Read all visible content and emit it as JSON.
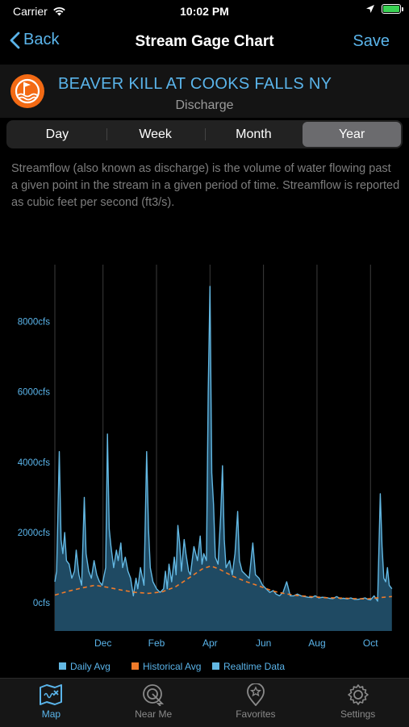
{
  "status_bar": {
    "carrier": "Carrier",
    "time": "10:02 PM"
  },
  "nav": {
    "back_label": "Back",
    "title": "Stream Gage Chart",
    "save_label": "Save"
  },
  "station": {
    "name": "BEAVER KILL AT COOKS FALLS NY",
    "subtitle": "Discharge"
  },
  "segments": [
    {
      "label": "Day",
      "active": false
    },
    {
      "label": "Week",
      "active": false
    },
    {
      "label": "Month",
      "active": false
    },
    {
      "label": "Year",
      "active": true
    }
  ],
  "description": "Streamflow (also known as discharge) is the volume of water flowing past a given point in the stream in a given period of time. Streamflow is reported as cubic feet per second (ft3/s).",
  "colors": {
    "accent": "#5ab4ea",
    "daily_fill": "#1f4a63",
    "daily_line": "#63b8e3",
    "historical": "#f07b2a",
    "logo": "#f36a14"
  },
  "chart_data": {
    "type": "area",
    "x_tick_labels": [
      "Dec",
      "Feb",
      "Apr",
      "Jun",
      "Aug",
      "Oct"
    ],
    "y_tick_labels": [
      "0cfs",
      "2000cfs",
      "4000cfs",
      "6000cfs",
      "8000cfs"
    ],
    "y_ticks": [
      0,
      2000,
      4000,
      6000,
      8000
    ],
    "ylim": [
      -800,
      9800
    ],
    "x_unit": "day of period",
    "xlim": [
      0,
      380
    ],
    "month_gridlines": [
      0,
      54,
      114,
      174,
      234,
      294,
      354
    ],
    "grid": true,
    "legend_position": "bottom",
    "series": [
      {
        "name": "Daily Avg",
        "color": "#63b8e3",
        "points": [
          [
            0,
            600
          ],
          [
            2,
            900
          ],
          [
            5,
            4300
          ],
          [
            7,
            1800
          ],
          [
            9,
            1400
          ],
          [
            11,
            2000
          ],
          [
            13,
            1200
          ],
          [
            16,
            1100
          ],
          [
            19,
            700
          ],
          [
            22,
            900
          ],
          [
            24,
            1500
          ],
          [
            27,
            800
          ],
          [
            30,
            500
          ],
          [
            33,
            3000
          ],
          [
            35,
            1400
          ],
          [
            38,
            900
          ],
          [
            41,
            700
          ],
          [
            44,
            1200
          ],
          [
            47,
            800
          ],
          [
            50,
            600
          ],
          [
            53,
            500
          ],
          [
            57,
            1000
          ],
          [
            59,
            4800
          ],
          [
            61,
            2100
          ],
          [
            63,
            1600
          ],
          [
            66,
            1000
          ],
          [
            69,
            1500
          ],
          [
            71,
            1200
          ],
          [
            74,
            1700
          ],
          [
            76,
            1000
          ],
          [
            79,
            1300
          ],
          [
            82,
            900
          ],
          [
            85,
            700
          ],
          [
            88,
            200
          ],
          [
            91,
            700
          ],
          [
            93,
            400
          ],
          [
            96,
            1000
          ],
          [
            100,
            500
          ],
          [
            103,
            4300
          ],
          [
            105,
            2100
          ],
          [
            107,
            1000
          ],
          [
            110,
            600
          ],
          [
            114,
            400
          ],
          [
            118,
            300
          ],
          [
            122,
            400
          ],
          [
            124,
            900
          ],
          [
            126,
            400
          ],
          [
            128,
            1100
          ],
          [
            131,
            600
          ],
          [
            134,
            1300
          ],
          [
            136,
            800
          ],
          [
            138,
            2200
          ],
          [
            140,
            1700
          ],
          [
            142,
            900
          ],
          [
            145,
            1800
          ],
          [
            147,
            1400
          ],
          [
            150,
            900
          ],
          [
            152,
            800
          ],
          [
            156,
            1600
          ],
          [
            160,
            1200
          ],
          [
            163,
            1900
          ],
          [
            165,
            1100
          ],
          [
            167,
            1400
          ],
          [
            170,
            1200
          ],
          [
            172,
            6000
          ],
          [
            174,
            9000
          ],
          [
            176,
            3700
          ],
          [
            178,
            2800
          ],
          [
            180,
            1300
          ],
          [
            183,
            1100
          ],
          [
            186,
            2500
          ],
          [
            188,
            3900
          ],
          [
            190,
            1800
          ],
          [
            192,
            1000
          ],
          [
            196,
            1200
          ],
          [
            199,
            800
          ],
          [
            202,
            1400
          ],
          [
            205,
            2600
          ],
          [
            207,
            1200
          ],
          [
            210,
            900
          ],
          [
            214,
            800
          ],
          [
            218,
            700
          ],
          [
            222,
            1700
          ],
          [
            225,
            800
          ],
          [
            229,
            700
          ],
          [
            233,
            500
          ],
          [
            237,
            400
          ],
          [
            241,
            300
          ],
          [
            245,
            350
          ],
          [
            248,
            250
          ],
          [
            252,
            200
          ],
          [
            256,
            300
          ],
          [
            260,
            600
          ],
          [
            264,
            200
          ],
          [
            268,
            200
          ],
          [
            272,
            250
          ],
          [
            276,
            200
          ],
          [
            280,
            180
          ],
          [
            284,
            160
          ],
          [
            288,
            150
          ],
          [
            292,
            200
          ],
          [
            296,
            140
          ],
          [
            300,
            160
          ],
          [
            304,
            150
          ],
          [
            308,
            130
          ],
          [
            312,
            120
          ],
          [
            316,
            180
          ],
          [
            320,
            120
          ],
          [
            324,
            130
          ],
          [
            328,
            110
          ],
          [
            332,
            140
          ],
          [
            336,
            100
          ],
          [
            340,
            100
          ],
          [
            344,
            120
          ],
          [
            348,
            140
          ],
          [
            351,
            100
          ],
          [
            354,
            80
          ],
          [
            358,
            200
          ],
          [
            362,
            50
          ],
          [
            365,
            3100
          ],
          [
            367,
            1600
          ],
          [
            369,
            700
          ],
          [
            371,
            600
          ],
          [
            373,
            1000
          ],
          [
            375,
            500
          ],
          [
            378,
            400
          ]
        ]
      },
      {
        "name": "Historical Avg",
        "color": "#f07b2a",
        "points": [
          [
            0,
            220
          ],
          [
            15,
            330
          ],
          [
            30,
            420
          ],
          [
            45,
            500
          ],
          [
            60,
            440
          ],
          [
            75,
            360
          ],
          [
            90,
            300
          ],
          [
            105,
            270
          ],
          [
            120,
            310
          ],
          [
            135,
            450
          ],
          [
            150,
            700
          ],
          [
            165,
            960
          ],
          [
            175,
            1050
          ],
          [
            185,
            950
          ],
          [
            200,
            750
          ],
          [
            215,
            600
          ],
          [
            230,
            470
          ],
          [
            245,
            330
          ],
          [
            260,
            250
          ],
          [
            275,
            200
          ],
          [
            290,
            170
          ],
          [
            305,
            145
          ],
          [
            320,
            135
          ],
          [
            335,
            120
          ],
          [
            350,
            110
          ],
          [
            365,
            150
          ],
          [
            378,
            180
          ]
        ]
      },
      {
        "name": "Realtime Data",
        "color": "#63b8e3",
        "points": []
      }
    ]
  },
  "tabs": [
    {
      "label": "Map",
      "active": true
    },
    {
      "label": "Near Me",
      "active": false
    },
    {
      "label": "Favorites",
      "active": false
    },
    {
      "label": "Settings",
      "active": false
    }
  ]
}
